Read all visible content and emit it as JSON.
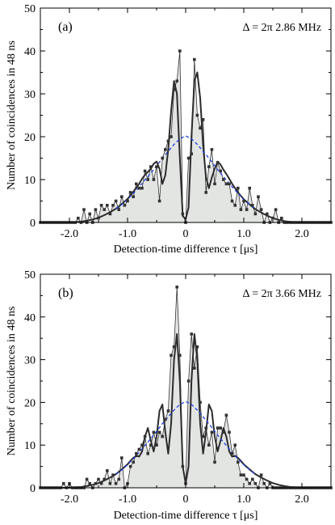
{
  "chart_data": [
    {
      "type": "line",
      "panel_label": "(a)",
      "annotation": "Δ = 2π  2.86 MHz",
      "xlabel": "Detection-time difference τ  [μs]",
      "ylabel": "Number of coincidences in 48 ns",
      "xlim": [
        -2.5,
        2.5
      ],
      "ylim": [
        0,
        50
      ],
      "xticks": [
        -2.0,
        -1.0,
        0,
        1.0,
        2.0
      ],
      "xtick_labels": [
        "-2.0",
        "-1.0",
        "0",
        "1.0",
        "2.0"
      ],
      "yticks": [
        0,
        10,
        20,
        30,
        40,
        50
      ],
      "ytick_labels": [
        "0",
        "10",
        "20",
        "30",
        "40",
        "50"
      ],
      "grid": false,
      "series": [
        {
          "style": "data points with thin connecting line and grey filled area",
          "x": [
            -2.5,
            -2.45,
            -2.4,
            -2.35,
            -2.3,
            -2.25,
            -2.2,
            -2.15,
            -2.1,
            -2.05,
            -2.0,
            -1.95,
            -1.9,
            -1.85,
            -1.8,
            -1.75,
            -1.7,
            -1.65,
            -1.6,
            -1.55,
            -1.5,
            -1.45,
            -1.4,
            -1.35,
            -1.3,
            -1.25,
            -1.2,
            -1.15,
            -1.1,
            -1.05,
            -1.0,
            -0.95,
            -0.9,
            -0.85,
            -0.8,
            -0.75,
            -0.7,
            -0.65,
            -0.6,
            -0.55,
            -0.5,
            -0.45,
            -0.4,
            -0.35,
            -0.3,
            -0.25,
            -0.2,
            -0.15,
            -0.1,
            -0.05,
            0.0,
            0.05,
            0.1,
            0.15,
            0.2,
            0.25,
            0.3,
            0.35,
            0.4,
            0.45,
            0.5,
            0.55,
            0.6,
            0.65,
            0.7,
            0.75,
            0.8,
            0.85,
            0.9,
            0.95,
            1.0,
            1.05,
            1.1,
            1.15,
            1.2,
            1.25,
            1.3,
            1.35,
            1.4,
            1.45,
            1.5,
            1.55,
            1.6,
            1.65,
            1.7,
            1.75,
            1.8,
            1.85,
            1.9,
            1.95,
            2.0,
            2.05,
            2.1,
            2.15,
            2.2,
            2.25,
            2.3,
            2.35,
            2.4,
            2.45,
            2.5
          ],
          "y": [
            0,
            0,
            0,
            0,
            0,
            0,
            0,
            0,
            0,
            0,
            0,
            0,
            0,
            1,
            0,
            3,
            0,
            2,
            0,
            3,
            1,
            4,
            3,
            4,
            2,
            4,
            5,
            3,
            6,
            4,
            5,
            7,
            6,
            9,
            8,
            8,
            12,
            10,
            13,
            10,
            13,
            5,
            15,
            17,
            19,
            20,
            31,
            33,
            40,
            2,
            0,
            15,
            16,
            38,
            25,
            22,
            24,
            7,
            13,
            17,
            9,
            14,
            12,
            10,
            9,
            9,
            5,
            4,
            8,
            3,
            5,
            3,
            8,
            4,
            2,
            6,
            3,
            0,
            2,
            0,
            1,
            3,
            0,
            1,
            0,
            0,
            0,
            0,
            0,
            0,
            0,
            0,
            0,
            0,
            0,
            0,
            0,
            0,
            0,
            0,
            0
          ]
        },
        {
          "style": "thick dark solid fit",
          "x": [
            -2.5,
            -2.4,
            -2.3,
            -2.2,
            -2.1,
            -2.0,
            -1.9,
            -1.8,
            -1.7,
            -1.6,
            -1.5,
            -1.4,
            -1.3,
            -1.2,
            -1.1,
            -1.0,
            -0.95,
            -0.9,
            -0.85,
            -0.8,
            -0.75,
            -0.7,
            -0.65,
            -0.6,
            -0.55,
            -0.5,
            -0.45,
            -0.4,
            -0.35,
            -0.3,
            -0.25,
            -0.2,
            -0.15,
            -0.1,
            -0.05,
            0.0,
            0.05,
            0.1,
            0.15,
            0.2,
            0.25,
            0.3,
            0.35,
            0.4,
            0.45,
            0.5,
            0.55,
            0.6,
            0.65,
            0.7,
            0.75,
            0.8,
            0.85,
            0.9,
            0.95,
            1.0,
            1.1,
            1.2,
            1.3,
            1.4,
            1.5,
            1.6,
            1.7,
            1.8,
            1.9,
            2.0,
            2.1,
            2.2,
            2.3,
            2.4,
            2.5
          ],
          "y": [
            0,
            0,
            0,
            0,
            0,
            0,
            0.1,
            0.2,
            0.4,
            0.7,
            1.1,
            1.7,
            2.4,
            3.2,
            4.3,
            5.5,
            6.3,
            7.2,
            8.1,
            9.0,
            10.2,
            11.1,
            11.8,
            12.5,
            13.7,
            14.2,
            12.5,
            9.0,
            11.0,
            17.0,
            26.0,
            33.0,
            30.0,
            15.0,
            1.5,
            0.8,
            3.5,
            20.0,
            33.0,
            35.0,
            29.0,
            18.0,
            10.5,
            8.0,
            10.5,
            12.5,
            14.2,
            13.5,
            12.3,
            11.3,
            10.2,
            9.0,
            8.0,
            7.0,
            6.2,
            5.4,
            4.2,
            3.1,
            2.3,
            1.6,
            1.0,
            0.6,
            0.3,
            0.15,
            0.05,
            0,
            0,
            0,
            0,
            0,
            0
          ]
        },
        {
          "style": "blue dashed envelope",
          "x": [
            -1.2,
            -1.1,
            -1.0,
            -0.9,
            -0.8,
            -0.7,
            -0.6,
            -0.5,
            -0.4,
            -0.3,
            -0.2,
            -0.1,
            0.0,
            0.1,
            0.2,
            0.3,
            0.4,
            0.5,
            0.6,
            0.7,
            0.8,
            0.9,
            1.0,
            1.1,
            1.2
          ],
          "y": [
            3.2,
            4.2,
            5.4,
            6.8,
            8.3,
            9.9,
            11.5,
            13.2,
            15.0,
            16.6,
            18.2,
            19.5,
            20.2,
            19.5,
            18.2,
            16.6,
            15.0,
            13.2,
            11.5,
            9.9,
            8.3,
            6.8,
            5.4,
            4.2,
            3.2
          ]
        }
      ]
    },
    {
      "type": "line",
      "panel_label": "(b)",
      "annotation": "Δ = 2π  3.66 MHz",
      "xlabel": "Detection-time difference τ  [μs]",
      "ylabel": "Number of coincidences in 48 ns",
      "xlim": [
        -2.5,
        2.5
      ],
      "ylim": [
        0,
        50
      ],
      "xticks": [
        -2.0,
        -1.0,
        0,
        1.0,
        2.0
      ],
      "xtick_labels": [
        "-2.0",
        "-1.0",
        "0",
        "1.0",
        "2.0"
      ],
      "yticks": [
        0,
        10,
        20,
        30,
        40,
        50
      ],
      "ytick_labels": [
        "0",
        "10",
        "20",
        "30",
        "40",
        "50"
      ],
      "grid": false,
      "series": [
        {
          "style": "data points with thin connecting line and grey filled area",
          "x": [
            -2.5,
            -2.45,
            -2.4,
            -2.35,
            -2.3,
            -2.25,
            -2.2,
            -2.15,
            -2.1,
            -2.05,
            -2.0,
            -1.95,
            -1.9,
            -1.85,
            -1.8,
            -1.75,
            -1.7,
            -1.65,
            -1.6,
            -1.55,
            -1.5,
            -1.45,
            -1.4,
            -1.35,
            -1.3,
            -1.25,
            -1.2,
            -1.15,
            -1.1,
            -1.05,
            -1.0,
            -0.95,
            -0.9,
            -0.85,
            -0.8,
            -0.75,
            -0.7,
            -0.65,
            -0.6,
            -0.55,
            -0.5,
            -0.45,
            -0.4,
            -0.35,
            -0.3,
            -0.25,
            -0.2,
            -0.15,
            -0.1,
            -0.05,
            0.0,
            0.05,
            0.1,
            0.15,
            0.2,
            0.25,
            0.3,
            0.35,
            0.4,
            0.45,
            0.5,
            0.55,
            0.6,
            0.65,
            0.7,
            0.75,
            0.8,
            0.85,
            0.9,
            0.95,
            1.0,
            1.05,
            1.1,
            1.15,
            1.2,
            1.25,
            1.3,
            1.35,
            1.4,
            1.45,
            1.5,
            1.55,
            1.6,
            1.65,
            1.7,
            1.75,
            1.8,
            1.85,
            1.9,
            1.95,
            2.0,
            2.05,
            2.1,
            2.15,
            2.2,
            2.25,
            2.3,
            2.35,
            2.4,
            2.45,
            2.5
          ],
          "y": [
            0,
            0,
            0,
            0,
            0,
            0,
            0,
            0,
            1,
            0,
            1,
            0,
            0,
            0,
            0,
            0,
            2,
            1,
            0,
            1,
            2,
            1,
            2,
            4,
            1,
            3,
            1,
            2,
            7,
            0,
            1,
            5,
            6,
            8,
            9,
            10,
            12,
            8,
            10,
            13,
            10,
            13,
            12,
            16,
            18,
            31,
            33,
            47,
            31,
            5,
            1,
            25,
            36,
            28,
            33,
            20,
            12,
            14,
            10,
            13,
            6,
            14,
            14,
            13,
            17,
            13,
            8,
            10,
            6,
            3,
            3,
            2,
            1,
            2,
            1,
            0,
            3,
            1,
            0,
            1,
            0,
            0,
            0,
            0,
            0,
            0,
            0,
            0,
            0,
            0,
            0,
            0,
            0,
            0,
            0,
            0,
            0,
            0,
            0,
            0,
            0
          ]
        },
        {
          "style": "thick dark solid fit",
          "x": [
            -2.5,
            -2.4,
            -2.3,
            -2.2,
            -2.1,
            -2.0,
            -1.9,
            -1.8,
            -1.7,
            -1.6,
            -1.5,
            -1.4,
            -1.3,
            -1.2,
            -1.1,
            -1.0,
            -0.95,
            -0.9,
            -0.85,
            -0.8,
            -0.75,
            -0.7,
            -0.65,
            -0.6,
            -0.55,
            -0.5,
            -0.45,
            -0.4,
            -0.35,
            -0.3,
            -0.25,
            -0.2,
            -0.15,
            -0.1,
            -0.05,
            0.0,
            0.05,
            0.1,
            0.15,
            0.2,
            0.25,
            0.3,
            0.35,
            0.4,
            0.45,
            0.5,
            0.55,
            0.6,
            0.65,
            0.7,
            0.75,
            0.8,
            0.85,
            0.9,
            0.95,
            1.0,
            1.1,
            1.2,
            1.3,
            1.4,
            1.5,
            1.6,
            1.7,
            1.8,
            1.9,
            2.0,
            2.1,
            2.2,
            2.3,
            2.4,
            2.5
          ],
          "y": [
            0,
            0,
            0,
            0,
            0,
            0,
            0.1,
            0.2,
            0.4,
            0.7,
            1.1,
            1.7,
            2.4,
            3.2,
            4.3,
            5.5,
            6.3,
            7.0,
            7.5,
            7.3,
            8.5,
            12.0,
            14.0,
            11.0,
            8.5,
            12.0,
            18.0,
            19.5,
            13.0,
            8.0,
            15.0,
            30.0,
            36.0,
            25.0,
            5.0,
            1.0,
            5.0,
            25.0,
            36.0,
            30.0,
            15.0,
            8.0,
            13.0,
            19.5,
            18.0,
            12.0,
            8.5,
            11.0,
            14.0,
            12.0,
            8.5,
            7.3,
            7.5,
            7.0,
            6.3,
            5.5,
            4.3,
            3.2,
            2.4,
            1.7,
            1.1,
            0.7,
            0.4,
            0.2,
            0.1,
            0,
            0,
            0,
            0,
            0,
            0
          ]
        },
        {
          "style": "blue dashed envelope",
          "x": [
            -1.2,
            -1.1,
            -1.0,
            -0.9,
            -0.8,
            -0.7,
            -0.6,
            -0.5,
            -0.4,
            -0.3,
            -0.2,
            -0.1,
            0.0,
            0.1,
            0.2,
            0.3,
            0.4,
            0.5,
            0.6,
            0.7,
            0.8,
            0.9,
            1.0,
            1.1,
            1.2
          ],
          "y": [
            3.2,
            4.2,
            5.4,
            6.8,
            8.3,
            9.9,
            11.5,
            13.2,
            15.0,
            16.6,
            18.2,
            19.5,
            20.2,
            19.5,
            18.2,
            16.6,
            15.0,
            13.2,
            11.5,
            9.9,
            8.3,
            6.8,
            5.4,
            4.2,
            3.2
          ]
        }
      ]
    }
  ],
  "colors": {
    "fill": "#e3e5e3",
    "data": "#333333",
    "fit": "#2b2b2b",
    "envelope": "#1f3ee0",
    "axis": "#000000"
  }
}
